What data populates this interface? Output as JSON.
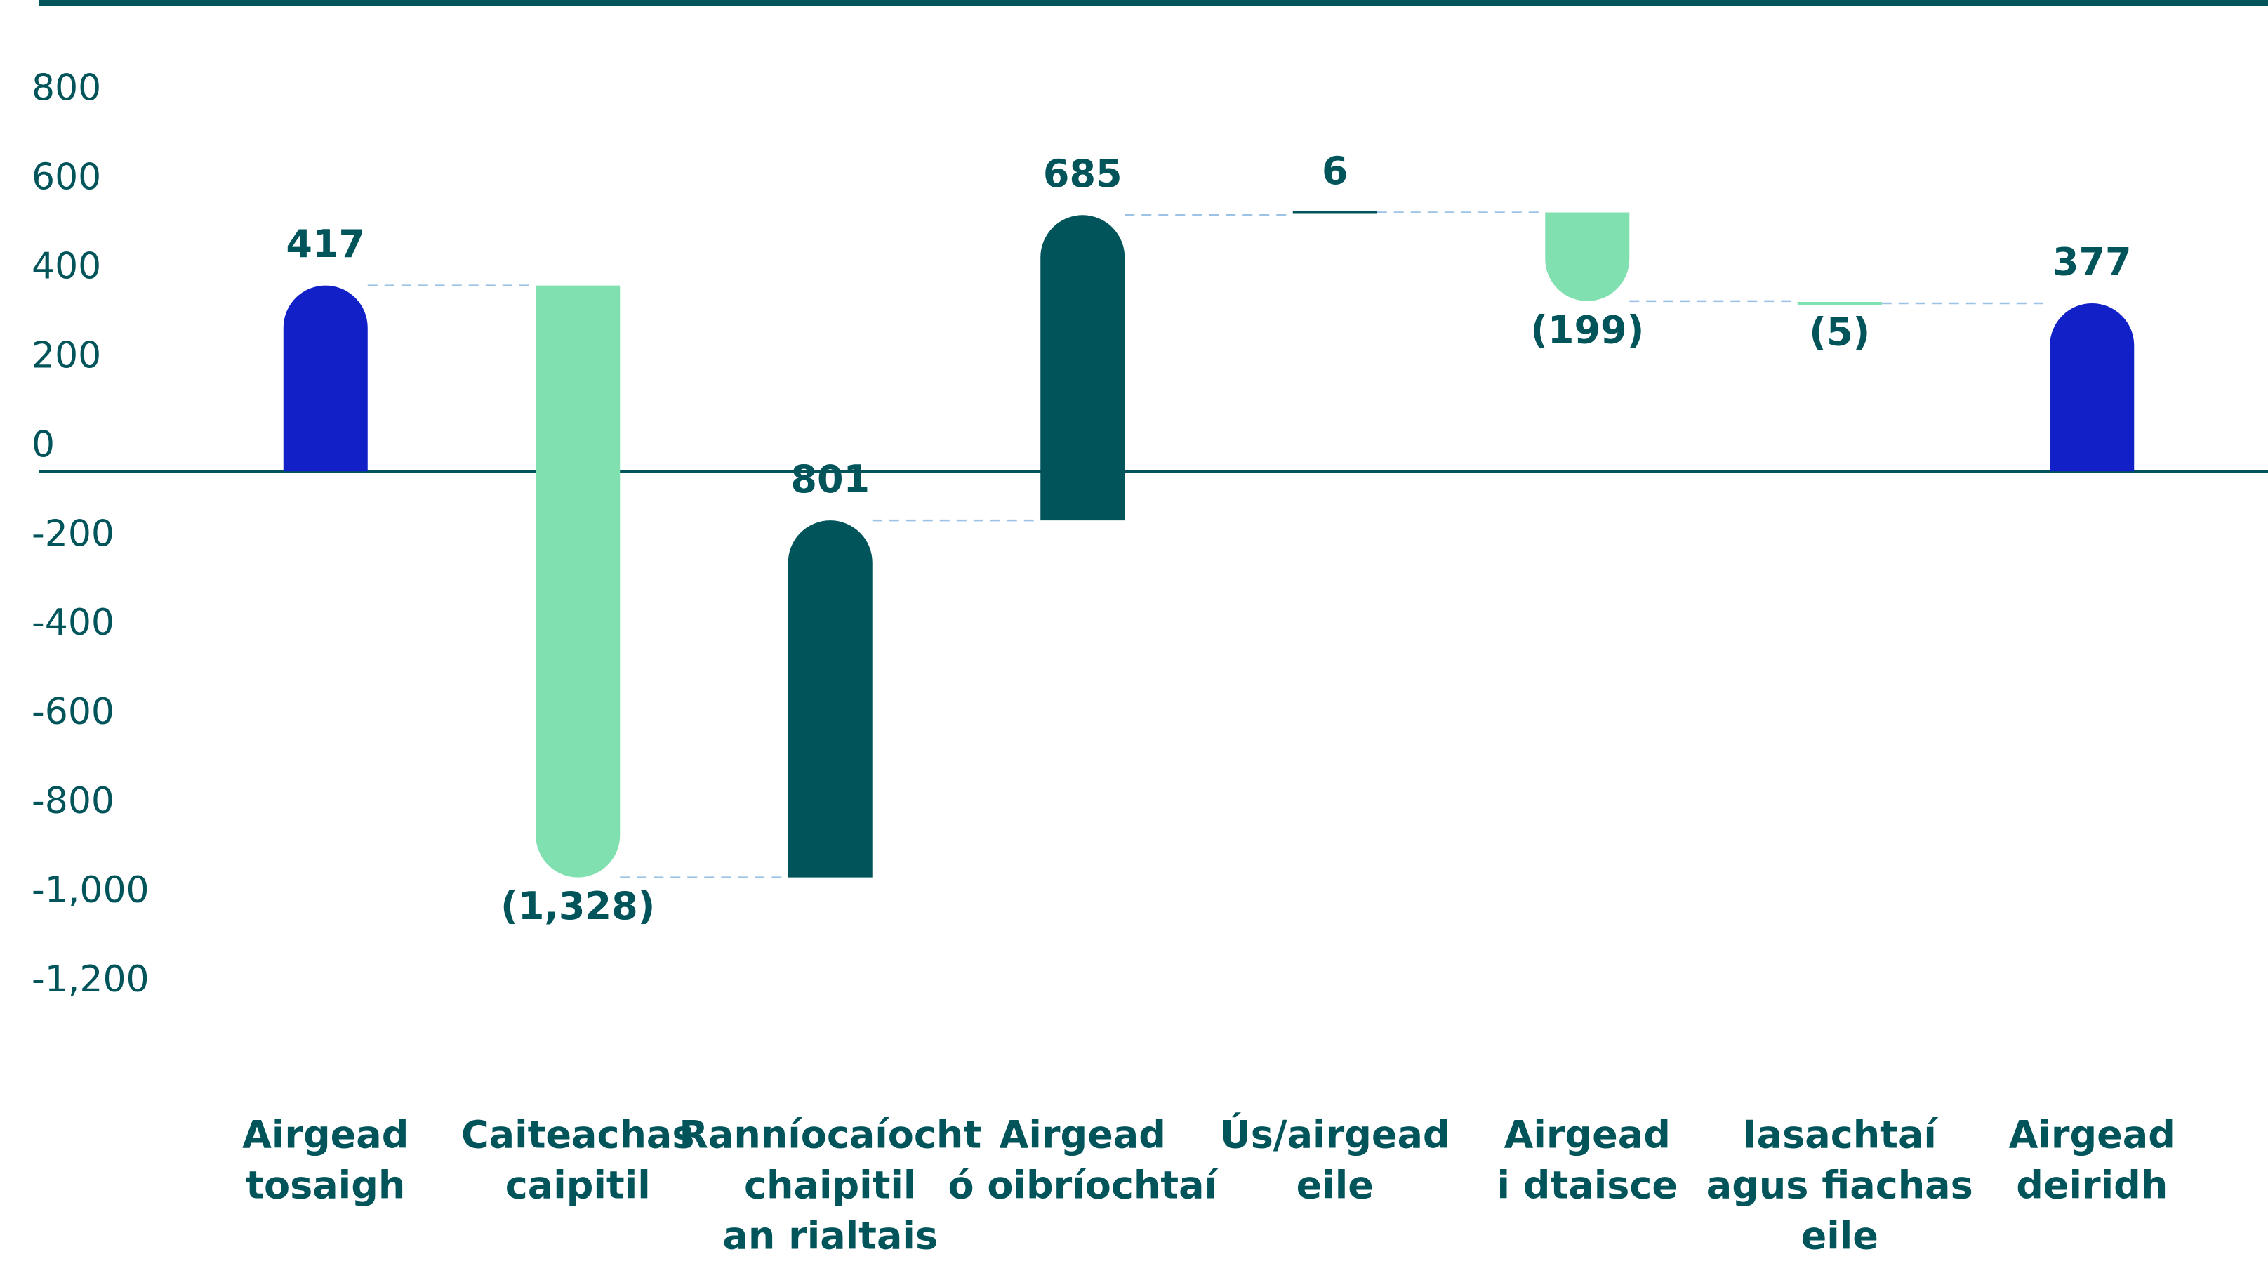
{
  "chart_data": {
    "type": "waterfall",
    "categories": [
      [
        "Airgead",
        "tosaigh"
      ],
      [
        "Caiteachas",
        "caipitil"
      ],
      [
        "Ranníocaíocht",
        "chaipitil",
        "an rialtais"
      ],
      [
        "Airgead",
        "ó oibríochtaí"
      ],
      [
        "Ús/airgead",
        "eile"
      ],
      [
        "Airgead",
        "i dtaisce"
      ],
      [
        "Iasachtaí",
        "agus fiachas",
        "eile"
      ],
      [
        "Airgead",
        "deiridh"
      ]
    ],
    "values": [
      417,
      -1328,
      801,
      685,
      6,
      -199,
      -5,
      377
    ],
    "value_labels": [
      "417",
      "(1,328)",
      "801",
      "685",
      "6",
      "(199)",
      "(5)",
      "377"
    ],
    "colors": [
      "#1220c8",
      "#80e0b0",
      "#00545a",
      "#00545a",
      "#00545a",
      "#80e0b0",
      "#80e0b0",
      "#1220c8"
    ],
    "ylim": [
      -1400,
      900
    ],
    "yticks": [
      {
        "value": -1200,
        "label": "-1,200"
      },
      {
        "value": -1000,
        "label": "-1,000"
      },
      -800,
      -600,
      -400,
      -200,
      0,
      200,
      400,
      600,
      800
    ]
  }
}
